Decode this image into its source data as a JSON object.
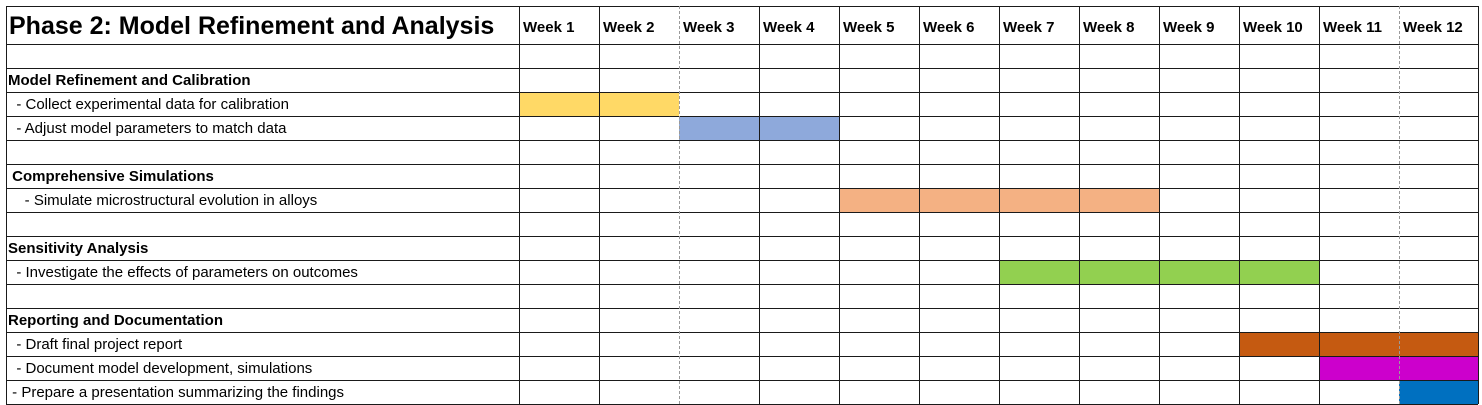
{
  "chart_data": {
    "type": "gantt",
    "title": "Phase 2: Model Refinement and Analysis",
    "weeks": [
      "Week 1",
      "Week 2",
      "Week 3",
      "Week 4",
      "Week 5",
      "Week 6",
      "Week 7",
      "Week 8",
      "Week 9",
      "Week 10",
      "Week 11",
      "Week 12"
    ],
    "dashed_after_weeks": [
      2,
      11
    ],
    "rows": [
      {
        "label": "",
        "kind": "blank"
      },
      {
        "label": "Model Refinement and Calibration",
        "kind": "section"
      },
      {
        "label": "  - Collect experimental data for calibration",
        "kind": "task",
        "start_week": 1,
        "end_week": 2,
        "color": "#FFD966"
      },
      {
        "label": "  - Adjust model parameters to match data",
        "kind": "task",
        "start_week": 3,
        "end_week": 4,
        "color": "#8EA9DB"
      },
      {
        "label": "",
        "kind": "blank"
      },
      {
        "label": " Comprehensive Simulations",
        "kind": "section"
      },
      {
        "label": "    - Simulate microstructural evolution in alloys",
        "kind": "task",
        "start_week": 5,
        "end_week": 8,
        "color": "#F4B183"
      },
      {
        "label": "",
        "kind": "blank"
      },
      {
        "label": "Sensitivity Analysis",
        "kind": "section"
      },
      {
        "label": "  - Investigate the effects of parameters on outcomes",
        "kind": "task",
        "start_week": 7,
        "end_week": 10,
        "color": "#92D050"
      },
      {
        "label": "",
        "kind": "blank"
      },
      {
        "label": "Reporting and Documentation",
        "kind": "section"
      },
      {
        "label": "  - Draft final project report",
        "kind": "task",
        "start_week": 10,
        "end_week": 12,
        "color": "#C55A11"
      },
      {
        "label": "  - Document model development, simulations",
        "kind": "task",
        "start_week": 11,
        "end_week": 12,
        "color": "#CC00CC"
      },
      {
        "label": " - Prepare a presentation summarizing the findings",
        "kind": "task",
        "start_week": 12,
        "end_week": 12,
        "color": "#0070C0"
      }
    ]
  }
}
